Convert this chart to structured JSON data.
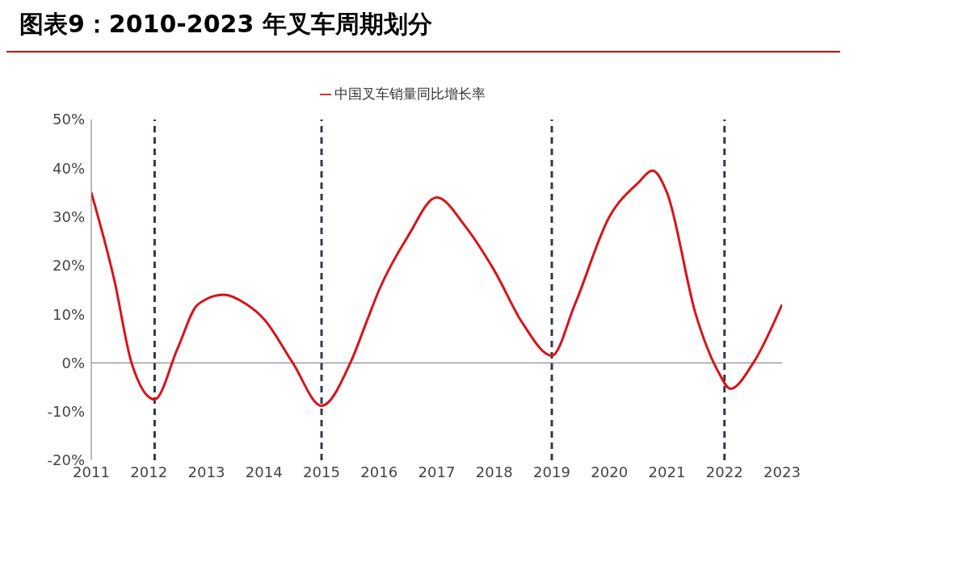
{
  "chart_data": {
    "type": "line",
    "title": "图表9：2010-2023 年叉车周期划分",
    "x": [
      2011,
      2011.4,
      2011.7,
      2012.1,
      2012.5,
      2012.85,
      2013.3,
      2013.7,
      2014,
      2014.5,
      2015,
      2015.5,
      2015.8,
      2016,
      2016.5,
      2017,
      2017.5,
      2018,
      2018.5,
      2019,
      2019.4,
      2020,
      2020.5,
      2020.75,
      2021,
      2021.5,
      2021.9,
      2022.1,
      2022.5,
      2023
    ],
    "series": [
      {
        "name": "中国叉车销量同比增长率",
        "color": "#d7141a",
        "values": [
          35,
          17,
          0,
          -7.5,
          3,
          12,
          14,
          12,
          9,
          0,
          -8.8,
          0,
          9,
          15,
          26,
          34,
          28,
          19,
          8,
          1.5,
          12,
          30,
          37,
          39.5,
          35,
          10,
          -2,
          -5.3,
          0,
          12
        ]
      }
    ],
    "xlim": [
      2011,
      2023
    ],
    "xticks": [
      2011,
      2012,
      2013,
      2014,
      2015,
      2016,
      2017,
      2018,
      2019,
      2020,
      2021,
      2022,
      2023
    ],
    "ylim": [
      -20,
      50
    ],
    "yticks": [
      {
        "value": -20,
        "label": "-20%"
      },
      {
        "value": -10,
        "label": "-10%"
      },
      {
        "value": 0,
        "label": "0%"
      },
      {
        "value": 10,
        "label": "10%"
      },
      {
        "value": 20,
        "label": "20%"
      },
      {
        "value": 30,
        "label": "30%"
      },
      {
        "value": 40,
        "label": "40%"
      },
      {
        "value": 50,
        "label": "50%"
      }
    ],
    "ref_lines": [
      {
        "axis": "x",
        "value": 2012.1,
        "color": "#2e3a4d",
        "line_style": "dashed"
      },
      {
        "axis": "x",
        "value": 2015,
        "color": "#2e3a4d",
        "line_style": "dashed"
      },
      {
        "axis": "x",
        "value": 2019,
        "color": "#2e3a4d",
        "line_style": "dashed"
      },
      {
        "axis": "x",
        "value": 2022,
        "color": "#2e3a4d",
        "line_style": "dashed"
      }
    ],
    "grid": false,
    "legend": "top",
    "marker": "none",
    "line_style": "solid"
  }
}
